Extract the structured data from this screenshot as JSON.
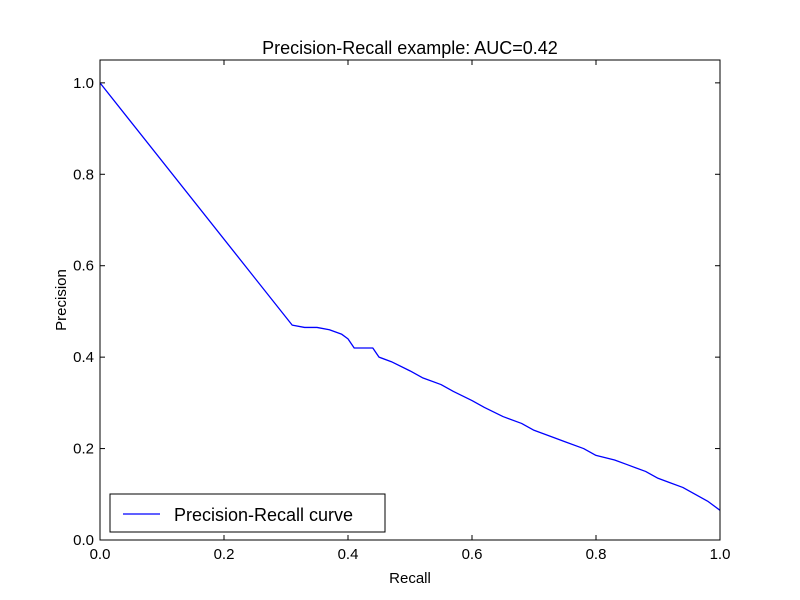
{
  "chart_data": {
    "type": "line",
    "title": "Precision-Recall example: AUC=0.42",
    "xlabel": "Recall",
    "ylabel": "Precision",
    "xlim": [
      0.0,
      1.0
    ],
    "ylim": [
      0.0,
      1.05
    ],
    "x_ticks": [
      0.0,
      0.2,
      0.4,
      0.6,
      0.8,
      1.0
    ],
    "y_ticks": [
      0.0,
      0.2,
      0.4,
      0.6,
      0.8,
      1.0
    ],
    "x_tick_labels": [
      "0.0",
      "0.2",
      "0.4",
      "0.6",
      "0.8",
      "1.0"
    ],
    "y_tick_labels": [
      "0.0",
      "0.2",
      "0.4",
      "0.6",
      "0.8",
      "1.0"
    ],
    "grid": false,
    "legend_position": "lower-left",
    "series": [
      {
        "name": "Precision-Recall curve",
        "color": "#0000ff",
        "x": [
          0.0,
          0.31,
          0.33,
          0.35,
          0.37,
          0.39,
          0.4,
          0.41,
          0.44,
          0.45,
          0.47,
          0.5,
          0.52,
          0.55,
          0.57,
          0.6,
          0.62,
          0.65,
          0.68,
          0.7,
          0.73,
          0.75,
          0.78,
          0.8,
          0.83,
          0.85,
          0.88,
          0.9,
          0.92,
          0.94,
          0.96,
          0.98,
          1.0
        ],
        "y": [
          1.0,
          0.47,
          0.465,
          0.465,
          0.46,
          0.45,
          0.44,
          0.42,
          0.42,
          0.4,
          0.39,
          0.37,
          0.355,
          0.34,
          0.325,
          0.305,
          0.29,
          0.27,
          0.255,
          0.24,
          0.225,
          0.215,
          0.2,
          0.185,
          0.175,
          0.165,
          0.15,
          0.135,
          0.125,
          0.115,
          0.1,
          0.085,
          0.065
        ]
      }
    ]
  }
}
